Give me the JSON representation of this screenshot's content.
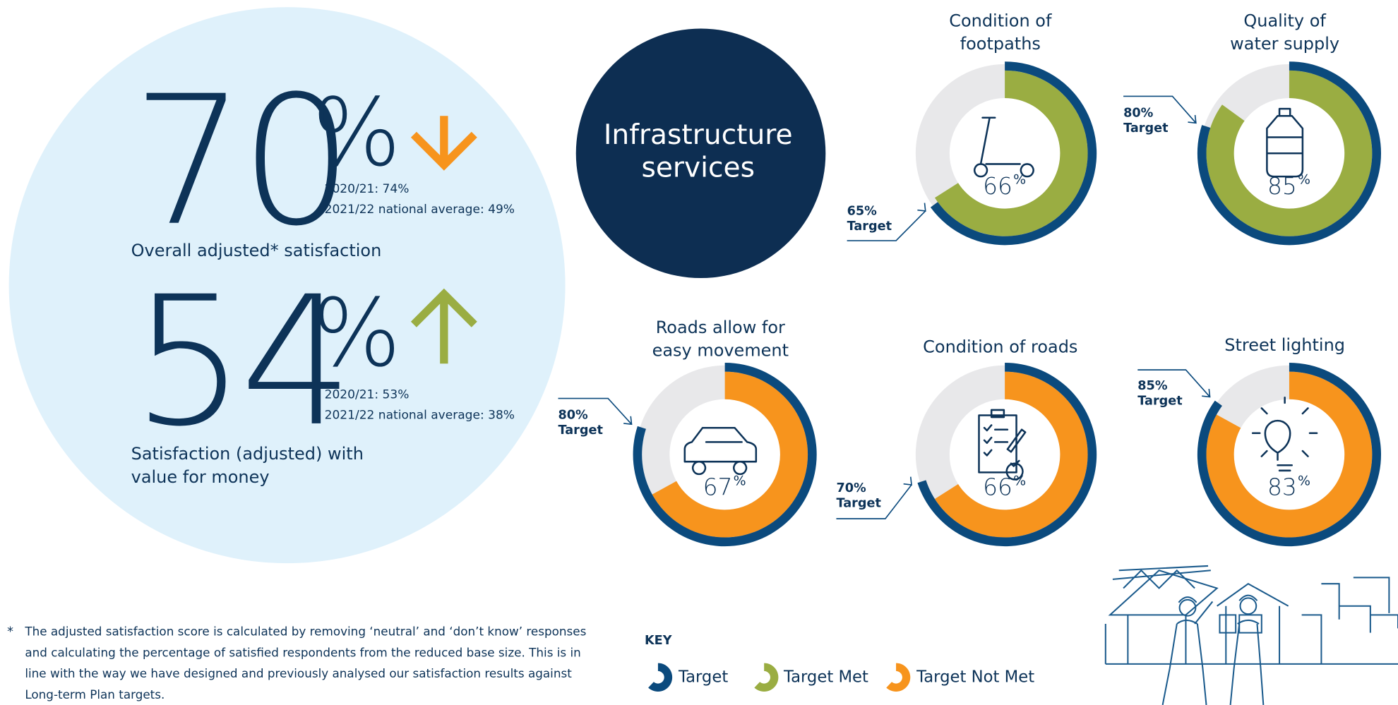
{
  "headline_stats": [
    {
      "value": 70,
      "unit": "%",
      "trend": "down",
      "lines": [
        "2020/21: 74%",
        "2021/22 national average: 49%"
      ],
      "label": [
        "Overall adjusted* satisfaction"
      ]
    },
    {
      "value": 54,
      "unit": "%",
      "trend": "up",
      "lines": [
        "2020/21: 53%",
        "2021/22 national average: 38%"
      ],
      "label": [
        "Satisfaction (adjusted) with",
        "value for money"
      ]
    }
  ],
  "section_title": [
    "Infrastructure",
    "services"
  ],
  "donuts": [
    {
      "title": [
        "Condition of",
        "footpaths"
      ],
      "value": 66,
      "unit": "%",
      "target": 65,
      "target_label": "65%",
      "target_text": "Target",
      "color": "#9aad42",
      "icon": "scooter"
    },
    {
      "title": [
        "Quality of",
        "water supply"
      ],
      "value": 85,
      "unit": "%",
      "target": 80,
      "target_label": "80%",
      "target_text": "Target",
      "color": "#9aad42",
      "icon": "bottle"
    },
    {
      "title": [
        "Roads allow for",
        "easy movement"
      ],
      "value": 67,
      "unit": "%",
      "target": 80,
      "target_label": "80%",
      "target_text": "Target",
      "color": "#f7941d",
      "icon": "car"
    },
    {
      "title": [
        "Condition of roads"
      ],
      "value": 66,
      "unit": "%",
      "target": 70,
      "target_label": "70%",
      "target_text": "Target",
      "color": "#f7941d",
      "icon": "clipboard"
    },
    {
      "title": [
        "Street lighting"
      ],
      "value": 83,
      "unit": "%",
      "target": 85,
      "target_label": "85%",
      "target_text": "Target",
      "color": "#f7941d",
      "icon": "bulb"
    }
  ],
  "key": {
    "title": "KEY",
    "items": [
      {
        "name": "Target",
        "color": "#0b4a7d"
      },
      {
        "name": "Target Met",
        "color": "#9aad42"
      },
      {
        "name": "Target Not Met",
        "color": "#f7941d"
      }
    ]
  },
  "footnote": {
    "marker": "*",
    "lines": [
      "The adjusted satisfaction score is calculated by removing ‘neutral’ and ‘don’t know’ responses",
      "and calculating the percentage of satisfied respondents from the reduced base size. This is in",
      "line with the way we have designed and previously analysed our satisfaction results against",
      "Long-term Plan targets."
    ]
  }
}
